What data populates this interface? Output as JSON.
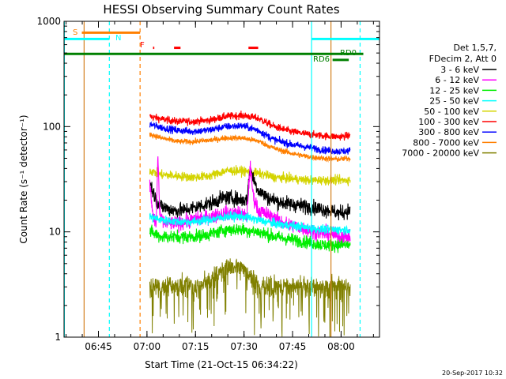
{
  "chart_data": {
    "type": "line",
    "title": "HESSI Observing Summary Count Rates",
    "xlabel": "Start Time (21-Oct-15 06:34:22)",
    "ylabel": "Count Rate (s⁻¹ detector⁻¹)",
    "yscale": "log",
    "ylim": [
      1,
      1000
    ],
    "xlim_minutes": [
      0,
      97.5
    ],
    "x_tick_labels": [
      "06:45",
      "07:00",
      "07:15",
      "07:30",
      "07:45",
      "08:00"
    ],
    "x_tick_minutes": [
      10.63,
      25.63,
      40.63,
      55.63,
      70.63,
      85.63
    ],
    "y_tick_labels": [
      "1",
      "10",
      "100",
      "1000"
    ],
    "y_tick_values": [
      1,
      10,
      100,
      1000
    ],
    "data_start_minute": 26.5,
    "data_end_minute": 88.5,
    "legend": {
      "header": [
        "Det 1,5,7,",
        "FDecim 2, Att 0"
      ],
      "entries": [
        {
          "label": "3 - 6 keV",
          "color": "#000000"
        },
        {
          "label": "6 - 12 keV",
          "color": "#ff00ff"
        },
        {
          "label": "12 - 25 keV",
          "color": "#00ee00"
        },
        {
          "label": "25 - 50 keV",
          "color": "#00ffff"
        },
        {
          "label": "50 - 100 keV",
          "color": "#d4d400"
        },
        {
          "label": "100 - 300 keV",
          "color": "#ff0000"
        },
        {
          "label": "300 - 800 keV",
          "color": "#0000ff"
        },
        {
          "label": "800 - 7000 keV",
          "color": "#ff7f00"
        },
        {
          "label": "7000 - 20000 keV",
          "color": "#808000"
        }
      ]
    },
    "series": [
      {
        "name": "100 - 300 keV",
        "color": "#ff0000",
        "points": [
          [
            26.5,
            125
          ],
          [
            30,
            118
          ],
          [
            35,
            112
          ],
          [
            40,
            112
          ],
          [
            45,
            115
          ],
          [
            50,
            125
          ],
          [
            55,
            128
          ],
          [
            60,
            120
          ],
          [
            65,
            100
          ],
          [
            70,
            90
          ],
          [
            75,
            85
          ],
          [
            80,
            82
          ],
          [
            85,
            80
          ],
          [
            88.5,
            82
          ]
        ],
        "noise": 0.04
      },
      {
        "name": "300 - 800 keV",
        "color": "#0000ff",
        "points": [
          [
            26.5,
            105
          ],
          [
            30,
            98
          ],
          [
            35,
            92
          ],
          [
            40,
            90
          ],
          [
            45,
            93
          ],
          [
            50,
            100
          ],
          [
            55,
            102
          ],
          [
            60,
            92
          ],
          [
            65,
            75
          ],
          [
            70,
            68
          ],
          [
            75,
            64
          ],
          [
            80,
            60
          ],
          [
            85,
            58
          ],
          [
            88.5,
            59
          ]
        ],
        "noise": 0.04
      },
      {
        "name": "800 - 7000 keV",
        "color": "#ff7f00",
        "points": [
          [
            26.5,
            85
          ],
          [
            30,
            78
          ],
          [
            35,
            72
          ],
          [
            40,
            72
          ],
          [
            45,
            74
          ],
          [
            50,
            78
          ],
          [
            55,
            78
          ],
          [
            60,
            73
          ],
          [
            65,
            62
          ],
          [
            70,
            56
          ],
          [
            75,
            52
          ],
          [
            80,
            50
          ],
          [
            85,
            49
          ],
          [
            88.5,
            50
          ]
        ],
        "noise": 0.03
      },
      {
        "name": "50 - 100 keV",
        "color": "#d4d400",
        "points": [
          [
            26.5,
            38
          ],
          [
            30,
            35
          ],
          [
            35,
            34
          ],
          [
            40,
            33
          ],
          [
            45,
            34
          ],
          [
            50,
            38
          ],
          [
            55,
            38
          ],
          [
            60,
            36
          ],
          [
            65,
            33
          ],
          [
            70,
            32
          ],
          [
            75,
            31
          ],
          [
            80,
            31
          ],
          [
            85,
            31
          ],
          [
            88.5,
            31
          ]
        ],
        "noise": 0.05
      },
      {
        "name": "3 - 6 keV",
        "color": "#000000",
        "points": [
          [
            26.5,
            30
          ],
          [
            27.5,
            24
          ],
          [
            28.5,
            20
          ],
          [
            29.5,
            18
          ],
          [
            31,
            17
          ],
          [
            34,
            16
          ],
          [
            37,
            16
          ],
          [
            40,
            17
          ],
          [
            43,
            18
          ],
          [
            46,
            19
          ],
          [
            49,
            21
          ],
          [
            52,
            21
          ],
          [
            55,
            20
          ],
          [
            56.5,
            20
          ],
          [
            57.5,
            40
          ],
          [
            58.5,
            32
          ],
          [
            60,
            25
          ],
          [
            63,
            21
          ],
          [
            67,
            19
          ],
          [
            72,
            18
          ],
          [
            77,
            17
          ],
          [
            82,
            16
          ],
          [
            85,
            15
          ],
          [
            88.5,
            16
          ]
        ],
        "noise": 0.08
      },
      {
        "name": "6 - 12 keV",
        "color": "#ff00ff",
        "points": [
          [
            26.5,
            28
          ],
          [
            27.5,
            14
          ],
          [
            28.5,
            12
          ],
          [
            29,
            55
          ],
          [
            29.6,
            14
          ],
          [
            31,
            12
          ],
          [
            35,
            12
          ],
          [
            40,
            13
          ],
          [
            45,
            14
          ],
          [
            50,
            15
          ],
          [
            54,
            15
          ],
          [
            56.5,
            14
          ],
          [
            57.5,
            42
          ],
          [
            58.5,
            22
          ],
          [
            60,
            16
          ],
          [
            64,
            14
          ],
          [
            68,
            12
          ],
          [
            73,
            11
          ],
          [
            78,
            10
          ],
          [
            82,
            9.5
          ],
          [
            85,
            9
          ],
          [
            88.5,
            9
          ]
        ],
        "noise": 0.08
      },
      {
        "name": "25 - 50 keV",
        "color": "#00ffff",
        "points": [
          [
            26.5,
            14
          ],
          [
            30,
            13
          ],
          [
            35,
            12.5
          ],
          [
            40,
            12.5
          ],
          [
            45,
            13
          ],
          [
            50,
            14
          ],
          [
            55,
            14
          ],
          [
            60,
            13
          ],
          [
            65,
            12
          ],
          [
            70,
            11.5
          ],
          [
            75,
            11
          ],
          [
            80,
            10.5
          ],
          [
            85,
            10.5
          ],
          [
            88.5,
            10.5
          ]
        ],
        "noise": 0.05
      },
      {
        "name": "12 - 25 keV",
        "color": "#00ee00",
        "points": [
          [
            26.5,
            10
          ],
          [
            30,
            9
          ],
          [
            35,
            9
          ],
          [
            40,
            9
          ],
          [
            45,
            9.5
          ],
          [
            50,
            10.5
          ],
          [
            55,
            10.5
          ],
          [
            60,
            10
          ],
          [
            65,
            9
          ],
          [
            70,
            8.5
          ],
          [
            75,
            8
          ],
          [
            80,
            7.5
          ],
          [
            85,
            7.5
          ],
          [
            88.5,
            7.5
          ]
        ],
        "noise": 0.07
      },
      {
        "name": "7000 - 20000 keV",
        "color": "#808000",
        "points": [
          [
            26.5,
            3
          ],
          [
            35,
            3
          ],
          [
            42,
            3
          ],
          [
            46,
            3.6
          ],
          [
            50,
            4.6
          ],
          [
            54,
            4.8
          ],
          [
            57,
            3.6
          ],
          [
            60,
            3
          ],
          [
            70,
            3
          ],
          [
            80,
            3
          ],
          [
            88.5,
            3
          ]
        ],
        "noise": 0.1,
        "band": true
      }
    ],
    "flag_bars": [
      {
        "label": "S",
        "color": "#ff7f00",
        "start_min": 5.5,
        "end_min": 23.5,
        "y_value": 780
      },
      {
        "label": "N",
        "color": "#00ffff",
        "start_min": 0,
        "end_min": 14,
        "y_value": 680
      },
      {
        "label": "N",
        "color": "#00ffff",
        "start_min": 76.5,
        "end_min": 97.5,
        "y_value": 680
      },
      {
        "label": "F",
        "color": "#ff0000",
        "start_min": 27.5,
        "end_min": 27.9,
        "y_value": 560
      },
      {
        "label": "F",
        "color": "#ff0000",
        "start_min": 34,
        "end_min": 36,
        "y_value": 560
      },
      {
        "label": "F",
        "color": "#ff0000",
        "start_min": 57,
        "end_min": 60,
        "y_value": 560
      },
      {
        "label": "RD0",
        "color": "#008000",
        "start_min": 0,
        "end_min": 92.5,
        "y_value": 490
      },
      {
        "label": "RD6",
        "color": "#008000",
        "start_min": 83,
        "end_min": 88,
        "y_value": 430
      }
    ],
    "flag_labels": [
      {
        "text": "S",
        "color": "#ff7f00"
      },
      {
        "text": "N",
        "color": "#00ffff"
      },
      {
        "text": "F",
        "color": "#ff0000"
      },
      {
        "text": "RD0",
        "color": "#008000"
      },
      {
        "text": "RD6",
        "color": "#008000"
      }
    ],
    "vertical_markers": [
      {
        "minute": 0.1,
        "color": "#00ffff",
        "style": "solid"
      },
      {
        "minute": 6.2,
        "color": "#d4801f",
        "style": "solid"
      },
      {
        "minute": 14,
        "color": "#00ffff",
        "style": "dashed"
      },
      {
        "minute": 23.5,
        "color": "#ff7f00",
        "style": "dashed"
      },
      {
        "minute": 76.5,
        "color": "#00ffff",
        "style": "solid"
      },
      {
        "minute": 82.5,
        "color": "#d4801f",
        "style": "solid"
      },
      {
        "minute": 91.5,
        "color": "#00ffff",
        "style": "dashed"
      }
    ],
    "footer": "20-Sep-2017 10:32"
  }
}
